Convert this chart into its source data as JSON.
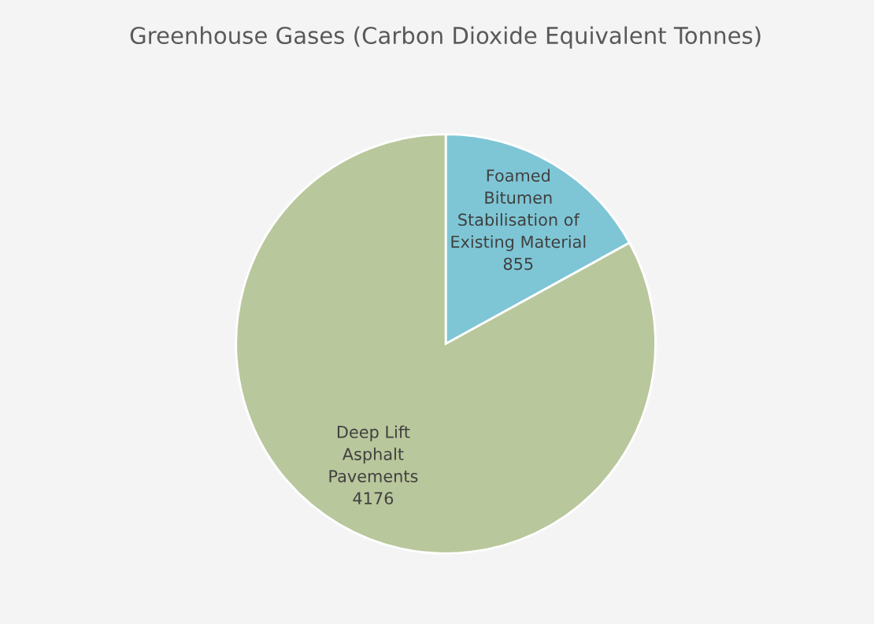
{
  "chart_data": {
    "type": "pie",
    "title": "Greenhouse Gases (Carbon Dioxide Equivalent Tonnes)",
    "categories": [
      "Foamed\nBitumen\nStabilisation of\nExisting Material",
      "Deep Lift\nAsphalt\nPavements"
    ],
    "values": [
      855,
      4176
    ],
    "colors": [
      "#7ec6d6",
      "#b9c79c"
    ],
    "data_labels": true
  }
}
